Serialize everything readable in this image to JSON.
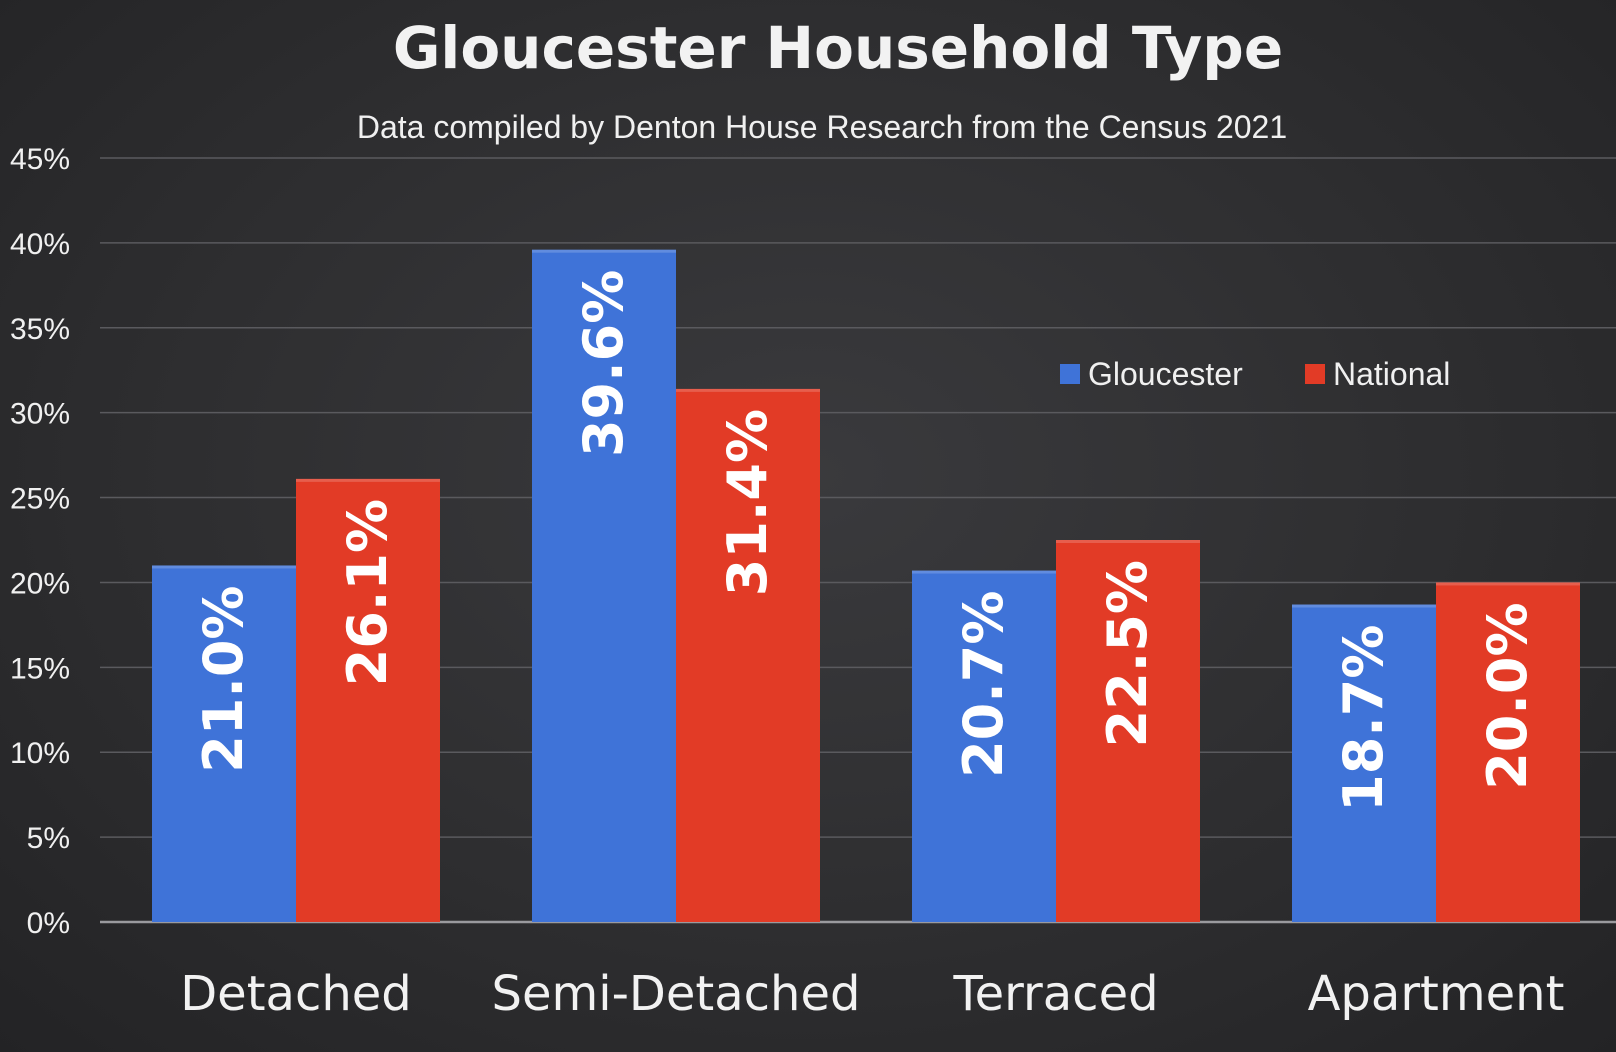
{
  "chart_data": {
    "type": "bar",
    "title": "Gloucester Household Type",
    "subtitle": "Data compiled by Denton House Research from the Census 2021",
    "categories": [
      "Detached",
      "Semi-Detached",
      "Terraced",
      "Apartment"
    ],
    "series": [
      {
        "name": "Gloucester",
        "color": "#3f73d8",
        "values": [
          21.0,
          39.6,
          20.7,
          18.7
        ],
        "labels": [
          "21.0%",
          "39.6%",
          "20.7%",
          "18.7%"
        ]
      },
      {
        "name": "National",
        "color": "#e23b26",
        "values": [
          26.1,
          31.4,
          22.5,
          20.0
        ],
        "labels": [
          "26.1%",
          "31.4%",
          "22.5%",
          "20.0%"
        ]
      }
    ],
    "ylim": [
      0,
      45
    ],
    "yticks": [
      "0%",
      "5%",
      "10%",
      "15%",
      "20%",
      "25%",
      "30%",
      "35%",
      "40%",
      "45%"
    ],
    "ytick_values": [
      0,
      5,
      10,
      15,
      20,
      25,
      30,
      35,
      40,
      45
    ],
    "grid": true,
    "legend_position": "top-right",
    "data_label_orientation": "vertical"
  }
}
